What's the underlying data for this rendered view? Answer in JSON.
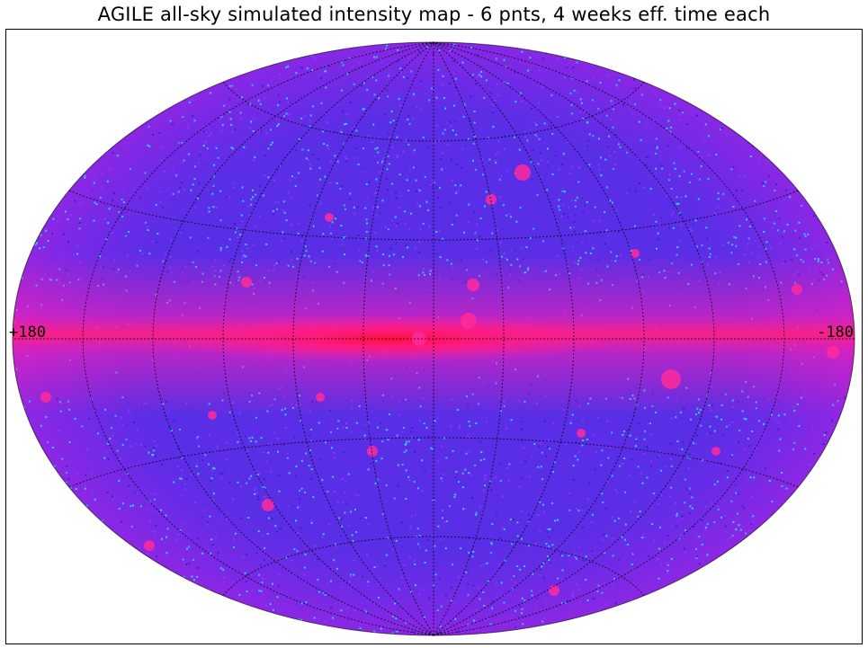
{
  "title": "AGILE all-sky simulated intensity map - 6 pnts, 4 weeks eff. time each",
  "map": {
    "projection": "aitoff",
    "left_label": "+180",
    "right_label": "-180",
    "colors": {
      "background_blue": "#5a2ee6",
      "plane_magenta": "#ff20a0",
      "core_red": "#ff1040",
      "noise_cyan": "#38c8ff",
      "grid": "#000000"
    }
  }
}
